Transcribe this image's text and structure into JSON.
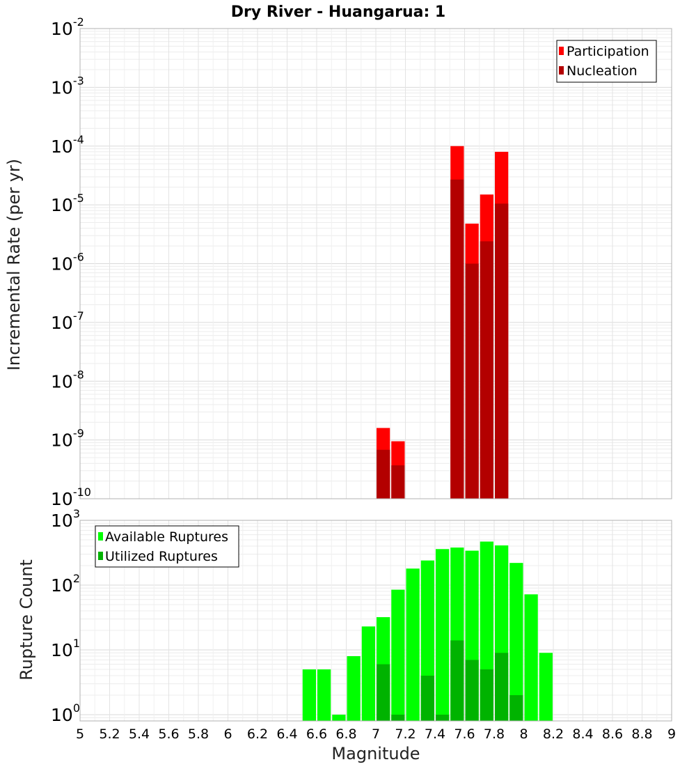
{
  "chart_data": [
    {
      "type": "bar",
      "title": "Dry River - Huangarua: 1",
      "xlabel": "",
      "ylabel": "Incremental Rate (per yr)",
      "yscale": "log",
      "ylim": [
        1e-10,
        0.01
      ],
      "xlim": [
        5,
        9
      ],
      "bin_width": 0.1,
      "legend_position": "top-right",
      "grid": true,
      "series": [
        {
          "name": "Participation",
          "color": "#ff0000",
          "points": [
            {
              "x": 7.05,
              "y": 1.6e-09
            },
            {
              "x": 7.15,
              "y": 9.5e-10
            },
            {
              "x": 7.55,
              "y": 0.0001
            },
            {
              "x": 7.65,
              "y": 4.8e-06
            },
            {
              "x": 7.75,
              "y": 1.5e-05
            },
            {
              "x": 7.85,
              "y": 8e-05
            }
          ]
        },
        {
          "name": "Nucleation",
          "color": "#b30000",
          "points": [
            {
              "x": 7.05,
              "y": 6.8e-10
            },
            {
              "x": 7.15,
              "y": 3.7e-10
            },
            {
              "x": 7.55,
              "y": 2.7e-05
            },
            {
              "x": 7.65,
              "y": 1e-06
            },
            {
              "x": 7.75,
              "y": 2.4e-06
            },
            {
              "x": 7.85,
              "y": 1.05e-05
            }
          ]
        }
      ]
    },
    {
      "type": "bar",
      "title": "",
      "xlabel": "Magnitude",
      "ylabel": "Rupture Count",
      "yscale": "log",
      "ylim": [
        0.8,
        1000
      ],
      "xlim": [
        5,
        9
      ],
      "bin_width": 0.1,
      "legend_position": "top-left",
      "grid": true,
      "xticks": [
        "5",
        "5.2",
        "5.4",
        "5.6",
        "5.8",
        "6",
        "6.2",
        "6.4",
        "6.6",
        "6.8",
        "7",
        "7.2",
        "7.4",
        "7.6",
        "7.8",
        "8",
        "8.2",
        "8.4",
        "8.6",
        "8.8",
        "9"
      ],
      "series": [
        {
          "name": "Available Ruptures",
          "color": "#00ff00",
          "points": [
            {
              "x": 6.55,
              "y": 5
            },
            {
              "x": 6.65,
              "y": 5
            },
            {
              "x": 6.75,
              "y": 1
            },
            {
              "x": 6.85,
              "y": 8
            },
            {
              "x": 6.95,
              "y": 23
            },
            {
              "x": 7.05,
              "y": 32
            },
            {
              "x": 7.15,
              "y": 85
            },
            {
              "x": 7.25,
              "y": 180
            },
            {
              "x": 7.35,
              "y": 240
            },
            {
              "x": 7.45,
              "y": 360
            },
            {
              "x": 7.55,
              "y": 380
            },
            {
              "x": 7.65,
              "y": 340
            },
            {
              "x": 7.75,
              "y": 470
            },
            {
              "x": 7.85,
              "y": 410
            },
            {
              "x": 7.95,
              "y": 220
            },
            {
              "x": 8.05,
              "y": 72
            },
            {
              "x": 8.15,
              "y": 9
            }
          ]
        },
        {
          "name": "Utilized Ruptures",
          "color": "#00b300",
          "points": [
            {
              "x": 7.05,
              "y": 6
            },
            {
              "x": 7.15,
              "y": 1
            },
            {
              "x": 7.35,
              "y": 4
            },
            {
              "x": 7.45,
              "y": 1
            },
            {
              "x": 7.55,
              "y": 14
            },
            {
              "x": 7.65,
              "y": 7
            },
            {
              "x": 7.75,
              "y": 5
            },
            {
              "x": 7.85,
              "y": 9
            },
            {
              "x": 7.95,
              "y": 2
            }
          ]
        }
      ]
    }
  ]
}
